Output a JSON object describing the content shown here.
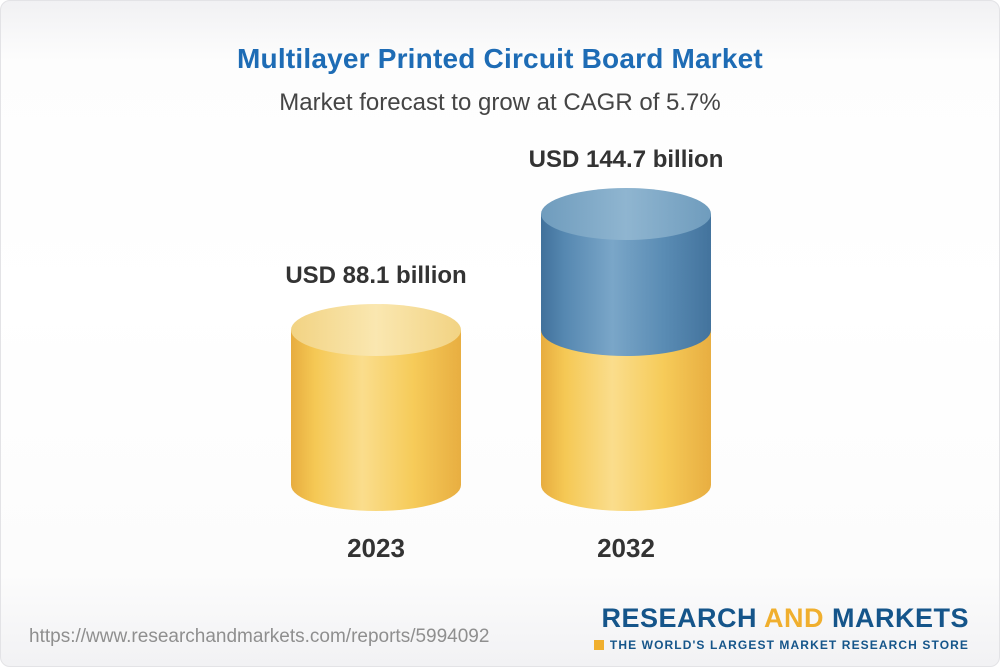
{
  "chart_data": {
    "type": "bar",
    "subtype": "3d-cylinder-stacked",
    "title": "Multilayer Printed Circuit Board Market",
    "subtitle": "Market forecast to grow at CAGR of 5.7%",
    "cagr_percent": 5.7,
    "unit": "USD billion",
    "categories": [
      "2023",
      "2032"
    ],
    "values": [
      88.1,
      144.7
    ],
    "value_labels": [
      "USD 88.1 billion",
      "USD 144.7 billion"
    ],
    "ylim": [
      0,
      160
    ],
    "grid": false,
    "legend": "none",
    "colors": {
      "base_segment": "#f6cb59",
      "growth_segment": "#5a8cb4",
      "title_text": "#1e6cb5",
      "label_text": "#333333"
    }
  },
  "footer": {
    "source_url": "https://www.researchandmarkets.com/reports/5994092",
    "logo": {
      "word1": "RESEARCH",
      "word2": "AND",
      "word3": "MARKETS",
      "tagline": "THE WORLD'S LARGEST MARKET RESEARCH STORE"
    }
  }
}
